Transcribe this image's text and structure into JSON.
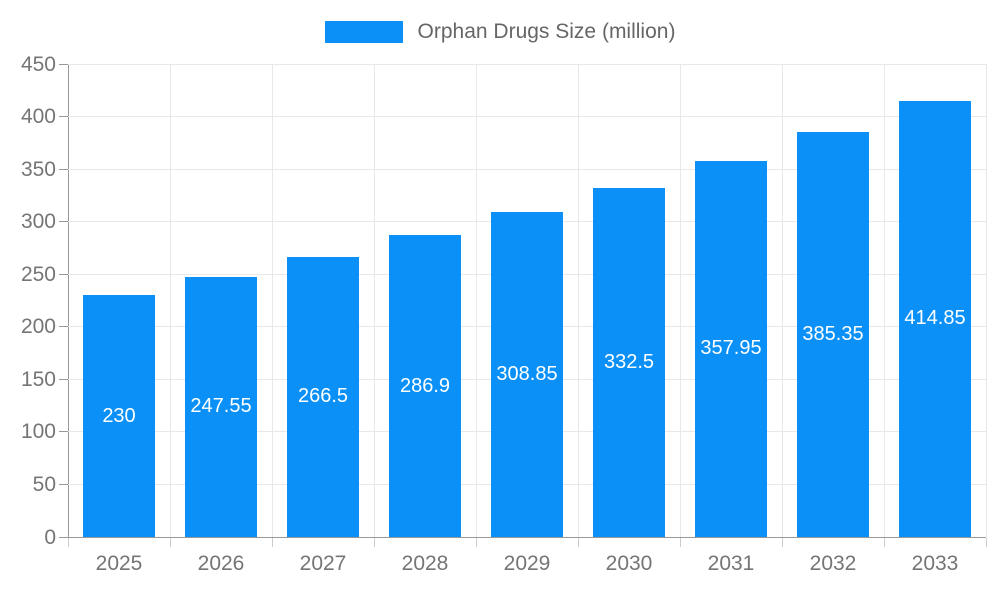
{
  "chart_data": {
    "type": "bar",
    "title": "Orphan Drugs Size (million)",
    "legend": [
      "Orphan Drugs Size (million)"
    ],
    "legend_position": "top",
    "categories": [
      "2025",
      "2026",
      "2027",
      "2028",
      "2029",
      "2030",
      "2031",
      "2032",
      "2033"
    ],
    "series": [
      {
        "name": "Orphan Drugs Size (million)",
        "values": [
          230,
          247.55,
          266.5,
          286.9,
          308.85,
          332.5,
          357.95,
          385.35,
          414.85
        ],
        "value_labels": [
          "230",
          "247.55",
          "266.5",
          "286.9",
          "308.85",
          "332.5",
          "357.95",
          "385.35",
          "414.85"
        ]
      }
    ],
    "xlabel": "",
    "ylabel": "",
    "ylim": [
      0,
      450
    ],
    "y_tick_step": 50,
    "y_tick_labels": [
      "0",
      "50",
      "100",
      "150",
      "200",
      "250",
      "300",
      "350",
      "400",
      "450"
    ],
    "grid": true,
    "colors": {
      "bar": "#0a90f6",
      "bar_value_text": "#ffffff",
      "axis_line": "#999999",
      "gridline": "#e8e8e8",
      "tick_label": "#757575",
      "legend_text": "#666666"
    }
  }
}
